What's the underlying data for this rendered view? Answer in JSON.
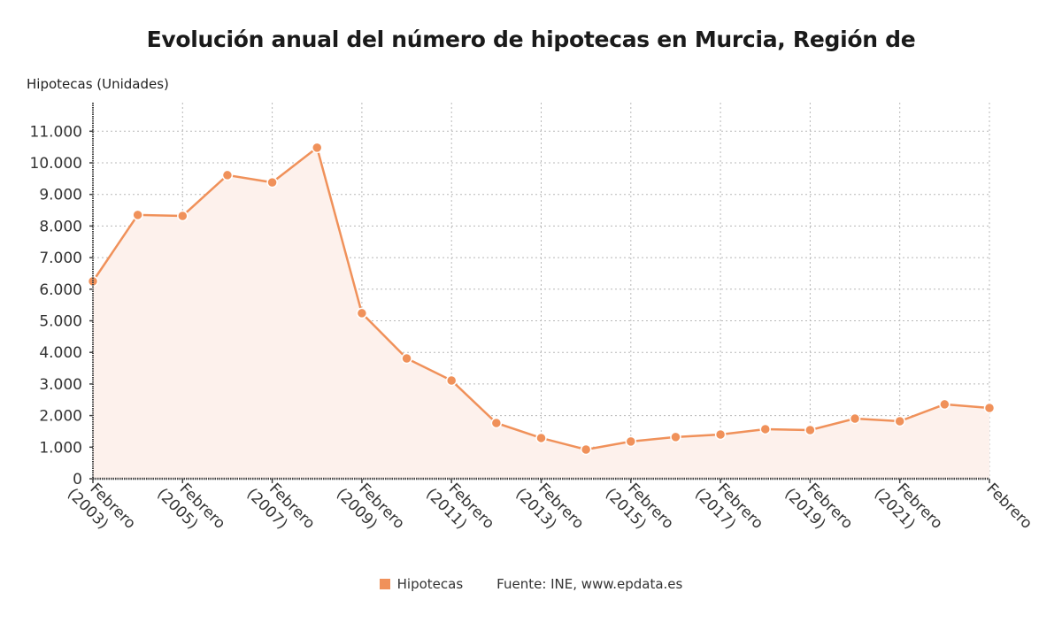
{
  "title": "Evolución anual del número de hipotecas en Murcia, Región de",
  "legend": {
    "series_label": "Hipotecas",
    "source": "Fuente: INE, www.epdata.es"
  },
  "colors": {
    "line": "#f0915a",
    "fill": "#fdf1ec",
    "grid": "#b8b8b8",
    "axis": "#444444"
  },
  "chart_data": {
    "type": "area",
    "title": "Evolución anual del número de hipotecas en Murcia, Región de",
    "xlabel": "",
    "ylabel": "Hipotecas (Unidades)",
    "ylim": [
      0,
      11800
    ],
    "yticks": [
      0,
      1000,
      2000,
      3000,
      4000,
      5000,
      6000,
      7000,
      8000,
      9000,
      10000,
      11000
    ],
    "ytick_labels": [
      "0",
      "1.000",
      "2.000",
      "3.000",
      "4.000",
      "5.000",
      "6.000",
      "7.000",
      "8.000",
      "9.000",
      "10.000",
      "11.000"
    ],
    "xtick_labels": [
      [
        "Febrero",
        "(2003)"
      ],
      [
        "Febrero",
        "(2005)"
      ],
      [
        "Febrero",
        "(2007)"
      ],
      [
        "Febrero",
        "(2009)"
      ],
      [
        "Febrero",
        "(2011)"
      ],
      [
        "Febrero",
        "(2013)"
      ],
      [
        "Febrero",
        "(2015)"
      ],
      [
        "Febrero",
        "(2017)"
      ],
      [
        "Febrero",
        "(2019)"
      ],
      [
        "Febrero",
        "(2021)"
      ],
      [
        "Febrero",
        ""
      ]
    ],
    "grid": true,
    "legend_position": "bottom",
    "categories": [
      "Febrero (2003)",
      "Febrero (2004)",
      "Febrero (2005)",
      "Febrero (2006)",
      "Febrero (2007)",
      "Febrero (2008)",
      "Febrero (2009)",
      "Febrero (2010)",
      "Febrero (2011)",
      "Febrero (2012)",
      "Febrero (2013)",
      "Febrero (2014)",
      "Febrero (2015)",
      "Febrero (2016)",
      "Febrero (2017)",
      "Febrero (2018)",
      "Febrero (2019)",
      "Febrero (2020)",
      "Febrero (2021)",
      "Febrero (2022)",
      "Febrero (2023)"
    ],
    "series": [
      {
        "name": "Hipotecas",
        "values": [
          6250,
          8350,
          8320,
          9610,
          9380,
          10480,
          5240,
          3810,
          3110,
          1765,
          1290,
          925,
          1180,
          1320,
          1400,
          1570,
          1540,
          1905,
          1820,
          2355,
          2240
        ]
      }
    ]
  }
}
